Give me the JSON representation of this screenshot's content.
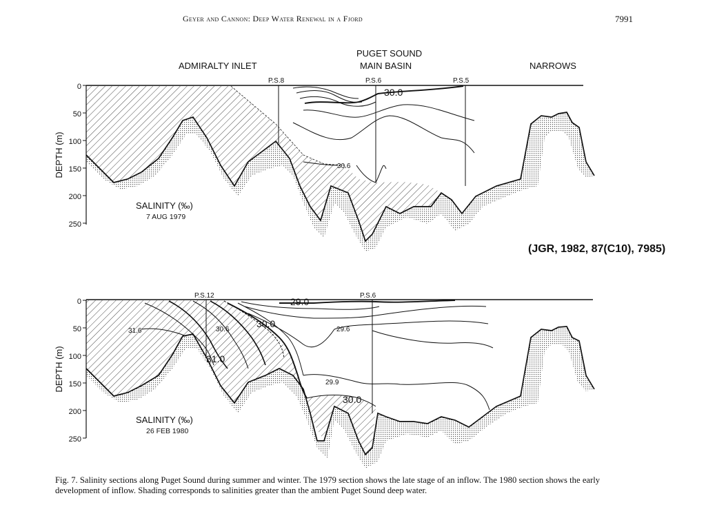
{
  "header": {
    "running_head": "Geyer and Cannon: Deep Water Renewal in a Fjord",
    "page_number": "7991"
  },
  "citation": "(JGR, 1982, 87(C10), 7985)",
  "region_labels": {
    "admiralty": "ADMIRALTY  INLET",
    "puget_line1": "PUGET  SOUND",
    "puget_line2": "MAIN  BASIN",
    "narrows": "NARROWS"
  },
  "panel1": {
    "title": "SALINITY (‰)",
    "date": "7 AUG 1979",
    "ylabel": "DEPTH (m)",
    "ticks": [
      "0",
      "50",
      "100",
      "150",
      "200",
      "250"
    ],
    "stations": [
      "P.S.8",
      "P.S.6",
      "P.S.5"
    ],
    "contours": [
      "30.0",
      "30.6"
    ]
  },
  "panel2": {
    "title": "SALINITY (‰)",
    "date": "26 FEB 1980",
    "ylabel": "DEPTH (m)",
    "ticks": [
      "0",
      "50",
      "100",
      "150",
      "200",
      "250"
    ],
    "stations": [
      "P.S.12",
      "P.S.6"
    ],
    "contours": [
      "29.0",
      "31.6",
      "30.6",
      "30.0",
      "29.6",
      "31.0",
      "29.9",
      "30.0"
    ]
  },
  "caption": "Fig. 7.   Salinity sections along Puget Sound during summer and winter. The 1979 section shows the late stage of an inflow. The 1980 section shows the early development of inflow. Shading corresponds to salinities greater than the ambient Puget Sound deep water."
}
